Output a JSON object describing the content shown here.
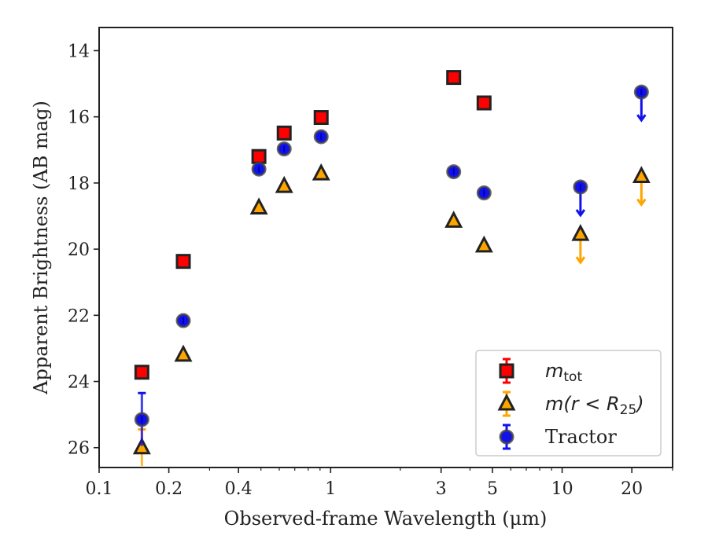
{
  "chart_data": {
    "type": "scatter",
    "xlabel": "Observed-frame Wavelength (μm)",
    "ylabel": "Apparent Brightness (AB mag)",
    "xscale": "log",
    "xlim": [
      0.1,
      30
    ],
    "ylim": [
      26.6,
      13.3
    ],
    "y_inverted": true,
    "xticks": [
      0.1,
      0.2,
      0.4,
      1,
      3,
      5,
      10,
      20
    ],
    "xtick_labels": [
      "0.1",
      "0.2",
      "0.4",
      "1",
      "3",
      "5",
      "10",
      "20"
    ],
    "yticks": [
      14,
      16,
      18,
      20,
      22,
      24,
      26
    ],
    "ytick_labels": [
      "14",
      "16",
      "18",
      "20",
      "22",
      "24",
      "26"
    ],
    "grid": false,
    "legend_position": "bottom-right",
    "series": [
      {
        "name": "m_tot",
        "legend_label": {
          "base": "m",
          "sub": "tot"
        },
        "marker": "square",
        "color": "#ff0000",
        "edge_color": "#222222",
        "points": [
          {
            "x": 0.153,
            "y": 23.72
          },
          {
            "x": 0.231,
            "y": 20.37
          },
          {
            "x": 0.49,
            "y": 17.2
          },
          {
            "x": 0.63,
            "y": 16.49
          },
          {
            "x": 0.91,
            "y": 16.02
          },
          {
            "x": 3.4,
            "y": 14.81
          },
          {
            "x": 4.6,
            "y": 15.58
          }
        ]
      },
      {
        "name": "m(r<R25)",
        "legend_label": {
          "base": "m(r < R",
          "sub": "25",
          "tail": ")"
        },
        "marker": "triangle",
        "color": "#ffa500",
        "edge_color": "#222222",
        "points": [
          {
            "x": 0.153,
            "y": 26.0,
            "yerr": 0.55
          },
          {
            "x": 0.231,
            "y": 23.2
          },
          {
            "x": 0.49,
            "y": 18.75
          },
          {
            "x": 0.63,
            "y": 18.1
          },
          {
            "x": 0.91,
            "y": 17.72
          },
          {
            "x": 3.4,
            "y": 19.15
          },
          {
            "x": 4.6,
            "y": 19.9
          },
          {
            "x": 12.0,
            "y": 19.55,
            "upper_limit": true
          },
          {
            "x": 22.0,
            "y": 17.8,
            "upper_limit": true
          }
        ]
      },
      {
        "name": "Tractor",
        "legend_label": {
          "base": "Tractor"
        },
        "marker": "circle",
        "color": "#1111ee",
        "edge_color": "#444444",
        "points": [
          {
            "x": 0.153,
            "y": 25.15,
            "yerr": 0.8
          },
          {
            "x": 0.231,
            "y": 22.16
          },
          {
            "x": 0.49,
            "y": 17.58
          },
          {
            "x": 0.63,
            "y": 16.97
          },
          {
            "x": 0.91,
            "y": 16.6
          },
          {
            "x": 3.4,
            "y": 17.66
          },
          {
            "x": 4.6,
            "y": 18.3
          },
          {
            "x": 12.0,
            "y": 18.12,
            "upper_limit": true
          },
          {
            "x": 22.0,
            "y": 15.25,
            "upper_limit": true
          }
        ]
      }
    ]
  }
}
